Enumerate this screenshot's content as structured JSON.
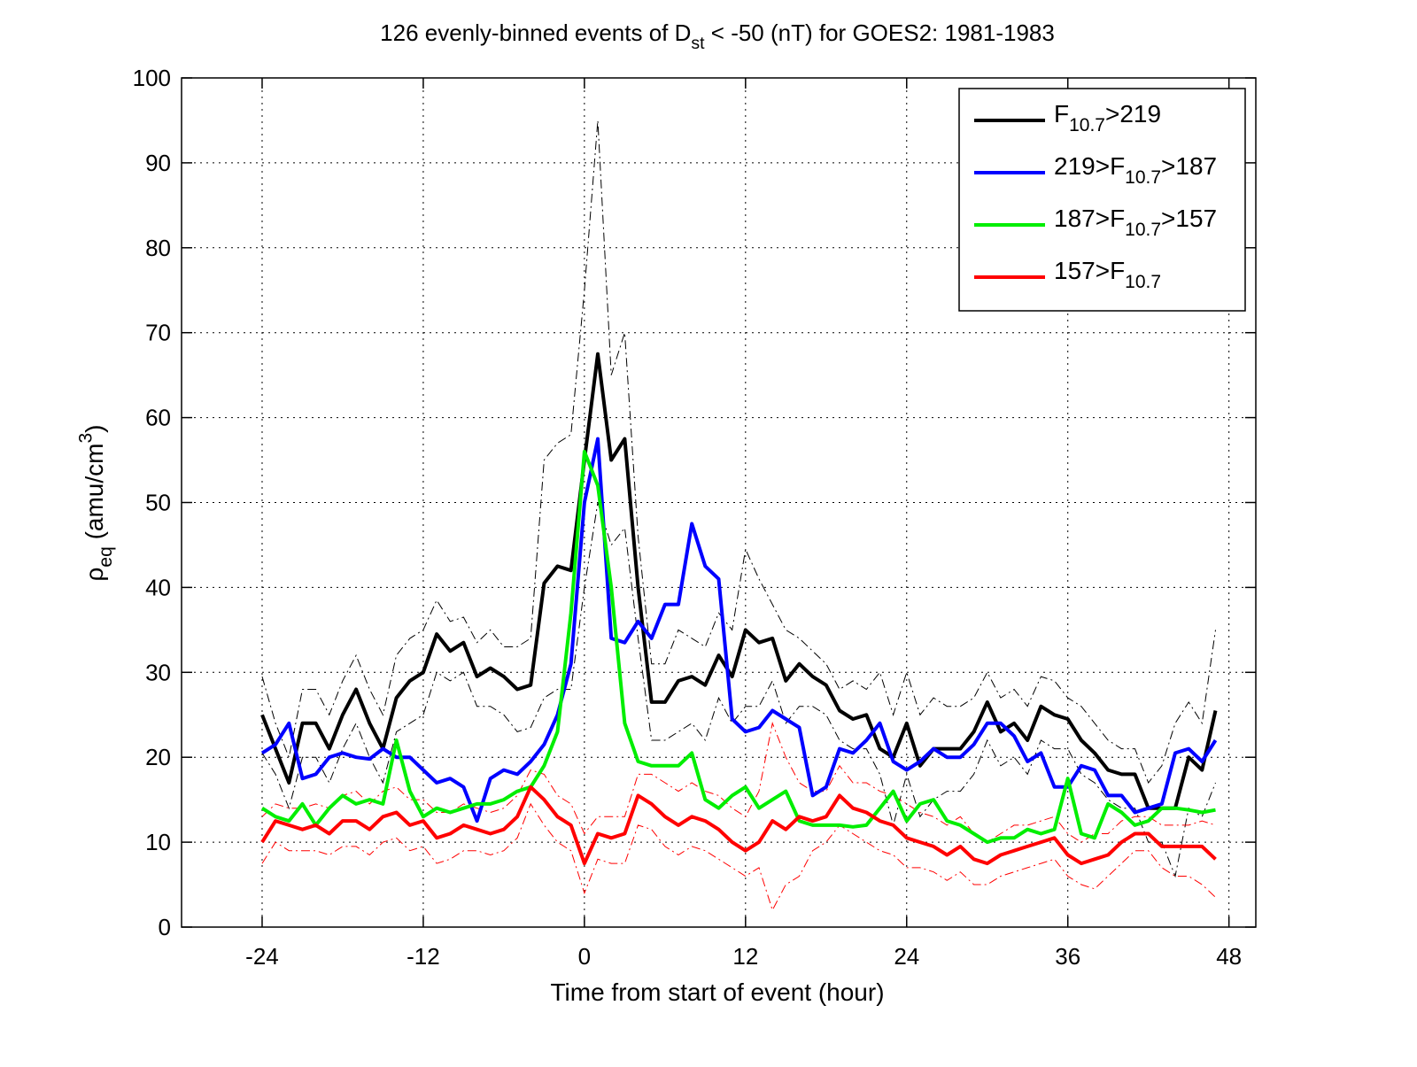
{
  "chart_data": {
    "type": "line",
    "title": [
      "126 evenly-binned events of D",
      {
        "sub": "st"
      },
      " < -50 (nT) for GOES2: 1981-1983"
    ],
    "xlabel": [
      "Time from start of event (hour)"
    ],
    "ylabel": [
      "ρ",
      {
        "sub": "eq"
      },
      " (amu/cm",
      {
        "sup": "3"
      },
      ")"
    ],
    "xlim": [
      -30,
      50
    ],
    "ylim": [
      0,
      100
    ],
    "xticks": [
      -24,
      -12,
      0,
      12,
      24,
      36,
      48
    ],
    "yticks": [
      0,
      10,
      20,
      30,
      40,
      50,
      60,
      70,
      80,
      90,
      100
    ],
    "grid": true,
    "legend": "upper right",
    "x": [
      -24,
      -23,
      -22,
      -21,
      -20,
      -19,
      -18,
      -17,
      -16,
      -15,
      -14,
      -13,
      -12,
      -11,
      -10,
      -9,
      -8,
      -7,
      -6,
      -5,
      -4,
      -3,
      -2,
      -1,
      0,
      1,
      2,
      3,
      4,
      5,
      6,
      7,
      8,
      9,
      10,
      11,
      12,
      13,
      14,
      15,
      16,
      17,
      18,
      19,
      20,
      21,
      22,
      23,
      24,
      25,
      26,
      27,
      28,
      29,
      30,
      31,
      32,
      33,
      34,
      35,
      36,
      37,
      38,
      39,
      40,
      41,
      42,
      43,
      44,
      45,
      46,
      47
    ],
    "series": [
      {
        "name": [
          "F",
          {
            "sub": "10.7"
          },
          ">219"
        ],
        "color": "#000000",
        "values": [
          25,
          21,
          17,
          24,
          24,
          21,
          25,
          28,
          24,
          21,
          27,
          29,
          30,
          34.5,
          32.5,
          33.5,
          29.5,
          30.5,
          29.5,
          28,
          28.5,
          40.5,
          42.5,
          42,
          55,
          67.5,
          55,
          57.5,
          40,
          26.5,
          26.5,
          29,
          29.5,
          28.5,
          32,
          29.5,
          35,
          33.5,
          34,
          29,
          31,
          29.5,
          28.5,
          25.5,
          24.5,
          25,
          21,
          20,
          24,
          19,
          21,
          21,
          21,
          23,
          26.5,
          23,
          24,
          22,
          26,
          25,
          24.5,
          22,
          20.5,
          18.5,
          18,
          18,
          14,
          14,
          14,
          20,
          18.5,
          25.5
        ]
      },
      {
        "name": [
          "219>F",
          {
            "sub": "10.7"
          },
          ">187"
        ],
        "color": "#0000ff",
        "values": [
          20.5,
          21.5,
          24,
          17.5,
          18,
          20,
          20.5,
          20,
          19.8,
          21,
          20,
          20,
          18.5,
          17,
          17.5,
          16.5,
          12.5,
          17.5,
          18.5,
          18,
          19.5,
          21.5,
          25,
          31,
          50,
          57.5,
          34,
          33.5,
          36,
          34,
          38,
          38,
          47.5,
          42.5,
          41,
          24.5,
          23,
          23.5,
          25.5,
          24.5,
          23.5,
          15.5,
          16.5,
          21,
          20.5,
          22,
          24,
          19.5,
          18.5,
          19.5,
          21,
          20,
          20,
          21.5,
          24,
          24,
          22.5,
          19.5,
          20.5,
          16.5,
          16.5,
          19,
          18.5,
          15.5,
          15.5,
          13.5,
          14,
          14.5,
          20.5,
          21,
          19.5,
          22
        ]
      },
      {
        "name": [
          "187>F",
          {
            "sub": "10.7"
          },
          ">157"
        ],
        "color": "#00ee00",
        "values": [
          14,
          13,
          12.5,
          14.5,
          12,
          14,
          15.5,
          14.5,
          15,
          14.5,
          22,
          16,
          13,
          14,
          13.5,
          14,
          14.5,
          14.5,
          15,
          16,
          16.5,
          19,
          23,
          37,
          56,
          52,
          40,
          24,
          19.5,
          19,
          19,
          19,
          20.5,
          15,
          14,
          15.5,
          16.5,
          14,
          15,
          16,
          12.5,
          12,
          12,
          12,
          11.8,
          12,
          14,
          16,
          12.5,
          14.5,
          15,
          12.5,
          12,
          11,
          10,
          10.5,
          10.5,
          11.5,
          11,
          11.5,
          17.5,
          11,
          10.5,
          14.5,
          13.5,
          12,
          12.5,
          14,
          14,
          13.8,
          13.5,
          13.8
        ]
      },
      {
        "name": [
          "157>F",
          {
            "sub": "10.7"
          }
        ],
        "color": "#ff0000",
        "values": [
          10,
          12.5,
          12,
          11.5,
          12,
          11,
          12.5,
          12.5,
          11.5,
          13,
          13.5,
          12,
          12.5,
          10.5,
          11,
          12,
          11.5,
          11,
          11.5,
          13,
          16.5,
          15,
          13,
          12,
          7.5,
          11,
          10.5,
          11,
          15.5,
          14.5,
          13,
          12,
          13,
          12.5,
          11.5,
          10,
          9,
          10,
          12.5,
          11.5,
          13,
          12.5,
          13,
          15.5,
          14,
          13.5,
          12.5,
          12,
          10.5,
          10,
          9.5,
          8.5,
          9.5,
          8,
          7.5,
          8.5,
          9,
          9.5,
          10,
          10.5,
          8.5,
          7.5,
          8,
          8.5,
          10,
          11,
          11,
          9.5,
          9.5,
          9.5,
          9.5,
          8
        ]
      }
    ],
    "bands": [
      {
        "color": "#000000",
        "dash": "dashdot",
        "values": [
          29.5,
          24,
          20,
          28,
          28,
          25,
          29,
          32,
          28,
          25,
          32,
          34,
          35,
          38.5,
          36,
          36.5,
          33.5,
          35,
          33,
          33,
          34,
          55,
          57,
          58,
          75,
          95,
          65,
          70,
          46,
          31,
          31,
          35,
          34,
          33,
          37,
          35,
          44.5,
          41,
          38,
          35,
          34,
          32.5,
          31,
          28,
          29,
          28,
          30,
          25,
          30,
          25,
          27,
          26,
          26,
          27,
          30,
          27,
          28,
          26,
          29.5,
          29,
          27,
          26,
          24,
          22,
          21,
          21,
          17,
          19,
          24,
          26.5,
          24,
          35
        ]
      },
      {
        "color": "#000000",
        "dash": "dashdot",
        "values": [
          20.5,
          18,
          14,
          20,
          20,
          17,
          21,
          24,
          20,
          17,
          23,
          24,
          25,
          30,
          29,
          30,
          26,
          26,
          25,
          23,
          23.5,
          27,
          28,
          28,
          40,
          50,
          45,
          47,
          34,
          22,
          22,
          23,
          24,
          22,
          27,
          24,
          26,
          26,
          29,
          24,
          26,
          26,
          25,
          22,
          21,
          21,
          18,
          12,
          18,
          13,
          15,
          16,
          16,
          18,
          22,
          19,
          20,
          18,
          22,
          21,
          21,
          18,
          17,
          15,
          14,
          14,
          10,
          10,
          6,
          14,
          13,
          17
        ]
      },
      {
        "color": "#ff0000",
        "dash": "dashdot",
        "values": [
          13,
          14.5,
          14,
          14,
          14.5,
          14,
          15.5,
          16,
          14.5,
          16,
          16.5,
          15,
          15,
          13.5,
          13.5,
          14.5,
          14,
          13.5,
          14,
          15.5,
          18.5,
          18,
          15.5,
          14.5,
          11,
          13,
          13,
          13,
          18,
          18,
          17,
          16,
          17,
          16,
          15.5,
          14,
          13,
          16,
          24,
          20,
          17,
          16,
          16,
          19,
          17,
          17,
          16,
          15.5,
          14.5,
          13.5,
          13,
          12,
          13,
          11,
          10,
          11,
          12,
          12,
          12.5,
          13,
          11,
          10,
          11,
          11,
          12.5,
          13,
          13,
          12,
          12,
          12,
          12.5,
          12
        ]
      },
      {
        "color": "#ff0000",
        "dash": "dashdot",
        "values": [
          7.5,
          10,
          9,
          9,
          9,
          8.5,
          9.5,
          9.5,
          8.5,
          10,
          10.5,
          9,
          9.5,
          7.5,
          8,
          9,
          9,
          8.5,
          9,
          10.5,
          14.5,
          12,
          10,
          9,
          4,
          8,
          7.5,
          7.5,
          12,
          11.5,
          9.5,
          8.5,
          9.5,
          9,
          8,
          7,
          6,
          7,
          2,
          5,
          6,
          9,
          10,
          12,
          11,
          10,
          9,
          8.5,
          7,
          7,
          6.5,
          5.5,
          6.5,
          5,
          5,
          6,
          6.5,
          7,
          7.5,
          8,
          6,
          5,
          4.5,
          6,
          7.5,
          9,
          9,
          7,
          6,
          6,
          5,
          3.5
        ]
      }
    ]
  }
}
